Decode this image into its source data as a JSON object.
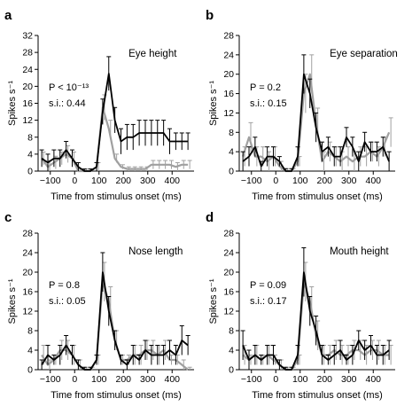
{
  "chart_data": [
    {
      "panel": "a",
      "type": "line",
      "title": "Eye height",
      "xlabel": "Time from stimulus onset (ms)",
      "ylabel": "Spikes s⁻¹",
      "xlim": [
        -150,
        490
      ],
      "ylim": [
        0,
        32
      ],
      "xticks": [
        -100,
        0,
        100,
        200,
        300,
        400
      ],
      "yticks": [
        0,
        4,
        8,
        12,
        16,
        20,
        24,
        28,
        32
      ],
      "annotation_p": "P < 10⁻¹³",
      "annotation_si": "s.i.: 0.44",
      "x": [
        -135,
        -110,
        -85,
        -60,
        -35,
        -10,
        15,
        40,
        65,
        90,
        115,
        140,
        165,
        190,
        215,
        240,
        265,
        290,
        315,
        340,
        365,
        390,
        415,
        440,
        465
      ],
      "series": [
        {
          "color": "#000000",
          "values": [
            3,
            2,
            3,
            3,
            5,
            3,
            1,
            0,
            0,
            1,
            14,
            23,
            12,
            7,
            8,
            8,
            9,
            9,
            9,
            9,
            9,
            7,
            7,
            7,
            7
          ],
          "errors": [
            2,
            2,
            2,
            2,
            2,
            2,
            1,
            0.5,
            0.5,
            1,
            3,
            4,
            3,
            3,
            3,
            3,
            3,
            3,
            3,
            3,
            3,
            3,
            2,
            2,
            2
          ]
        },
        {
          "color": "#a0a0a0",
          "values": [
            3,
            1,
            2,
            3,
            4,
            3,
            0,
            0,
            0,
            1,
            15,
            10,
            3,
            1,
            0.5,
            0.5,
            0.5,
            0.5,
            1.5,
            1.5,
            1.5,
            1.5,
            1,
            1.5,
            1.5
          ],
          "errors": [
            1.5,
            1.5,
            1.5,
            1.5,
            2,
            1.5,
            0.5,
            0.5,
            0.5,
            1,
            3,
            2,
            1,
            0.5,
            0.5,
            0.5,
            0.5,
            0.5,
            1,
            1,
            1,
            1,
            1,
            1,
            1
          ]
        }
      ]
    },
    {
      "panel": "b",
      "type": "line",
      "title": "Eye separation",
      "xlabel": "Time from stimulus onset (ms)",
      "ylabel": "Spikes s⁻¹",
      "xlim": [
        -150,
        490
      ],
      "ylim": [
        0,
        28
      ],
      "xticks": [
        -100,
        0,
        100,
        200,
        300,
        400
      ],
      "yticks": [
        0,
        4,
        8,
        12,
        16,
        20,
        24,
        28
      ],
      "annotation_p": "P = 0.2",
      "annotation_si": "s.i.: 0.15",
      "x": [
        -135,
        -110,
        -85,
        -60,
        -35,
        -10,
        15,
        40,
        65,
        90,
        115,
        140,
        165,
        190,
        215,
        240,
        265,
        290,
        315,
        340,
        365,
        390,
        415,
        440,
        465
      ],
      "series": [
        {
          "color": "#000000",
          "values": [
            2,
            3,
            5,
            1,
            3,
            3,
            2,
            0,
            0,
            3,
            20,
            16,
            9,
            4,
            5,
            3,
            3,
            7,
            5,
            2,
            6,
            4,
            4,
            5,
            2
          ],
          "errors": [
            2,
            2,
            2,
            1,
            2,
            2,
            1,
            0.5,
            0.5,
            2,
            4,
            3,
            3,
            2,
            2,
            2,
            2,
            2,
            2,
            2,
            2,
            2,
            2,
            2,
            2
          ]
        },
        {
          "color": "#a0a0a0",
          "values": [
            3,
            7,
            3,
            3,
            2,
            3,
            1,
            0,
            0,
            2,
            16,
            20,
            10,
            2,
            4,
            3,
            2,
            3,
            2,
            3,
            3,
            4,
            3,
            5,
            8
          ],
          "errors": [
            2,
            3,
            2,
            2,
            2,
            2,
            1,
            0.5,
            0.5,
            1,
            4,
            4,
            3,
            2,
            2,
            2,
            2,
            2,
            2,
            2,
            2,
            2,
            2,
            2,
            3
          ]
        }
      ]
    },
    {
      "panel": "c",
      "type": "line",
      "title": "Nose length",
      "xlabel": "Time from stimulus onset (ms)",
      "ylabel": "Spikes s⁻¹",
      "xlim": [
        -150,
        490
      ],
      "ylim": [
        0,
        28
      ],
      "xticks": [
        -100,
        0,
        100,
        200,
        300,
        400
      ],
      "yticks": [
        0,
        4,
        8,
        12,
        16,
        20,
        24,
        28
      ],
      "annotation_p": "P = 0.8",
      "annotation_si": "s.i.: 0.05",
      "x": [
        -135,
        -110,
        -85,
        -60,
        -35,
        -10,
        15,
        40,
        65,
        90,
        115,
        140,
        165,
        190,
        215,
        240,
        265,
        290,
        315,
        340,
        365,
        390,
        415,
        440,
        465
      ],
      "series": [
        {
          "color": "#000000",
          "values": [
            1,
            3,
            2,
            3,
            5,
            3,
            1,
            0,
            0,
            2,
            20,
            12,
            6,
            2,
            1,
            3,
            2,
            4,
            3,
            3,
            3,
            4,
            3,
            6,
            5
          ],
          "errors": [
            1,
            2,
            1,
            2,
            2,
            2,
            1,
            0.5,
            0.5,
            1,
            4,
            3,
            2,
            1,
            1,
            2,
            1,
            2,
            2,
            2,
            2,
            2,
            2,
            3,
            2
          ]
        },
        {
          "color": "#a0a0a0",
          "values": [
            3,
            1,
            2,
            4,
            4,
            3,
            1,
            0,
            0,
            2,
            18,
            14,
            6,
            2,
            2,
            3,
            3,
            4,
            4,
            3,
            4,
            2,
            2,
            1,
            0
          ],
          "errors": [
            2,
            1,
            1,
            2,
            2,
            2,
            1,
            0.5,
            0.5,
            1,
            4,
            3,
            2,
            1,
            1,
            2,
            2,
            2,
            2,
            2,
            2,
            1,
            1,
            1,
            0.5
          ]
        }
      ]
    },
    {
      "panel": "d",
      "type": "line",
      "title": "Mouth height",
      "xlabel": "Time from stimulus onset (ms)",
      "ylabel": "Spikes s⁻¹",
      "xlim": [
        -150,
        490
      ],
      "ylim": [
        0,
        28
      ],
      "xticks": [
        -100,
        0,
        100,
        200,
        300,
        400
      ],
      "yticks": [
        0,
        4,
        8,
        12,
        16,
        20,
        24,
        28
      ],
      "annotation_p": "P = 0.09",
      "annotation_si": "s.i.: 0.17",
      "x": [
        -135,
        -110,
        -85,
        -60,
        -35,
        -10,
        15,
        40,
        65,
        90,
        115,
        140,
        165,
        190,
        215,
        240,
        265,
        290,
        315,
        340,
        365,
        390,
        415,
        440,
        465
      ],
      "series": [
        {
          "color": "#000000",
          "values": [
            5,
            2,
            3,
            2,
            3,
            3,
            1,
            0,
            0,
            3,
            20,
            12,
            8,
            3,
            2,
            3,
            4,
            2,
            3,
            6,
            4,
            5,
            3,
            3,
            4
          ],
          "errors": [
            3,
            2,
            2,
            1,
            2,
            2,
            1,
            0.5,
            0.5,
            2,
            5,
            3,
            3,
            2,
            1,
            2,
            2,
            1,
            2,
            2,
            2,
            2,
            2,
            2,
            2
          ]
        },
        {
          "color": "#a0a0a0",
          "values": [
            3,
            2,
            3,
            2,
            3,
            2,
            1,
            0,
            0,
            2,
            18,
            14,
            7,
            3,
            3,
            4,
            3,
            3,
            4,
            4,
            3,
            4,
            4,
            3,
            3
          ],
          "errors": [
            2,
            1,
            2,
            1,
            2,
            1,
            1,
            0.5,
            0.5,
            1,
            4,
            3,
            3,
            2,
            2,
            2,
            2,
            2,
            2,
            2,
            2,
            2,
            2,
            2,
            2
          ]
        }
      ]
    }
  ]
}
